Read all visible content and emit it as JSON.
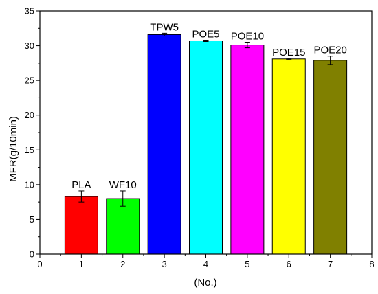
{
  "chart_data": {
    "type": "bar",
    "title": "",
    "xlabel": "(No.)",
    "ylabel": "MFR(g/10min)",
    "xlim": [
      0,
      8
    ],
    "ylim": [
      0,
      35
    ],
    "x_ticks": [
      0,
      1,
      2,
      3,
      4,
      5,
      6,
      7,
      8
    ],
    "y_ticks": [
      0,
      5,
      10,
      15,
      20,
      25,
      30,
      35
    ],
    "grid": false,
    "legend": "none",
    "bars": [
      {
        "label": "PLA",
        "x": 1,
        "value": 8.3,
        "error": 0.8,
        "color": "#ff0000"
      },
      {
        "label": "WF10",
        "x": 2,
        "value": 8.0,
        "error": 1.1,
        "color": "#00ff00"
      },
      {
        "label": "TPW5",
        "x": 3,
        "value": 31.6,
        "error": 0.2,
        "color": "#0000ff"
      },
      {
        "label": "POE5",
        "x": 4,
        "value": 30.7,
        "error": 0.1,
        "color": "#00ffff"
      },
      {
        "label": "POE10",
        "x": 5,
        "value": 30.1,
        "error": 0.4,
        "color": "#ff00ff"
      },
      {
        "label": "POE15",
        "x": 6,
        "value": 28.1,
        "error": 0.1,
        "color": "#ffff00"
      },
      {
        "label": "POE20",
        "x": 7,
        "value": 27.9,
        "error": 0.6,
        "color": "#808000"
      }
    ]
  }
}
